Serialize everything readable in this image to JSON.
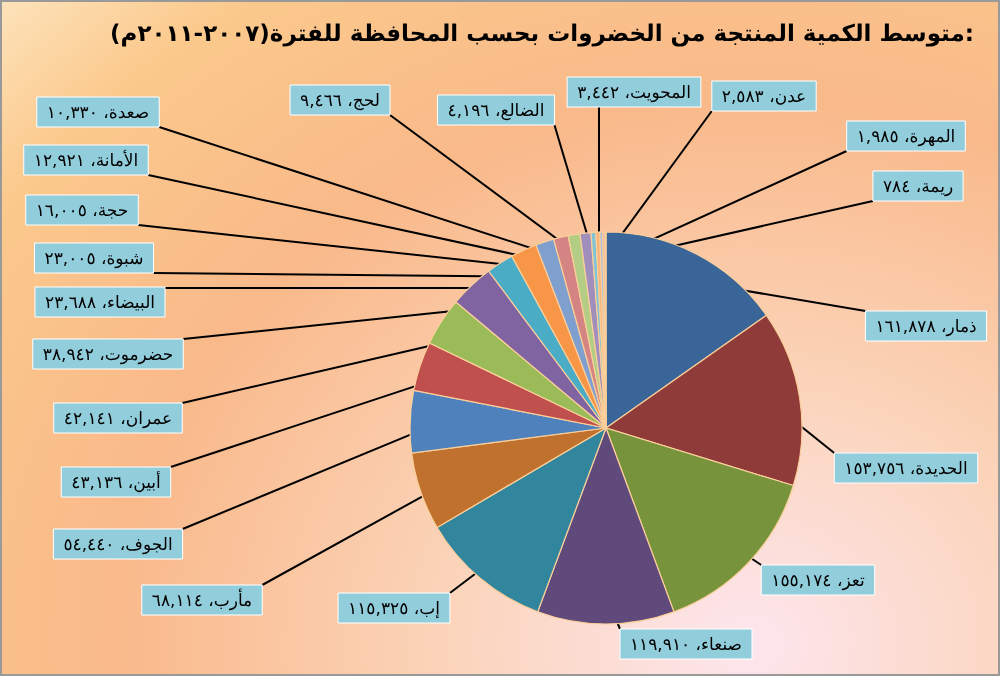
{
  "chart_data": {
    "type": "pie",
    "title": "متوسط الكمية المنتجة من الخضروات بحسب المحافظة للفترة(٢٠٠٧-٢٠١١م):",
    "categories": [
      "ذمار،",
      "الحديدة،",
      "تعز،",
      "صنعاء،",
      "إب،",
      "مأرب،",
      "الجوف،",
      "أبين،",
      "عمران،",
      "حضرموت،",
      "البيضاء،",
      "شبوة،",
      "حجة،",
      "الأمانة،",
      "صعدة،",
      "لحج،",
      "الضالع،",
      "المحويت،",
      "عدن،",
      "المهرة،",
      "ريمة،"
    ],
    "values": [
      161878,
      153756,
      155174,
      119910,
      115325,
      68114,
      54440,
      43136,
      42141,
      38942,
      23688,
      23005,
      16005,
      12921,
      10330,
      9466,
      4196,
      3442,
      2583,
      1985,
      784
    ],
    "value_labels": [
      "١٦١,٨٧٨",
      "١٥٣,٧٥٦",
      "١٥٥,١٧٤",
      "١١٩,٩١٠",
      "١١٥,٣٢٥",
      "٦٨,١١٤",
      "٥٤,٤٤٠",
      "٤٣,١٣٦",
      "٤٢,١٤١",
      "٣٨,٩٤٢",
      "٢٣,٦٨٨",
      "٢٣,٠٠٥",
      "١٦,٠٠٥",
      "١٢,٩٢١",
      "١٠,٣٣٠",
      "٩,٤٦٦",
      "٤,١٩٦",
      "٣,٤٤٢",
      "٢,٥٨٣",
      "١,٩٨٥",
      "٧٨٤"
    ],
    "colors": [
      "#3a6598",
      "#8e3b39",
      "#77933c",
      "#604a7b",
      "#31859c",
      "#c0712e",
      "#4f81bd",
      "#c0504d",
      "#9bbb59",
      "#8064a2",
      "#4bacc6",
      "#f79646",
      "#7f9fcf",
      "#d48583",
      "#b4cd84",
      "#a08fbd",
      "#7ec4d6",
      "#f9b27a",
      "#a9bfe0",
      "#e0aaa8",
      "#cfe0b0"
    ],
    "legend": false
  }
}
